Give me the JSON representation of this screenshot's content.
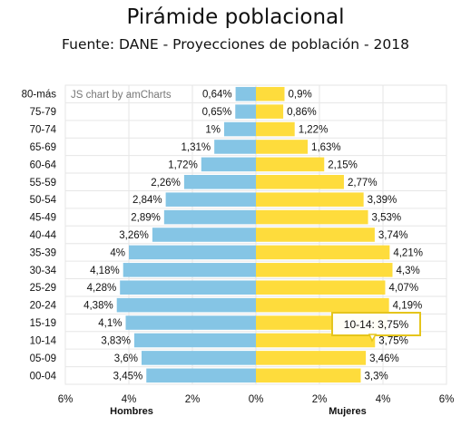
{
  "title": "Pirámide poblacional",
  "subtitle": "Fuente: DANE - Proyecciones de población - 2018",
  "credit": "JS chart by amCharts",
  "tooltip": "10-14: 3,75%",
  "chart_data": {
    "type": "bar",
    "orientation": "horizontal",
    "categories": [
      "80-más",
      "75-79",
      "70-74",
      "65-69",
      "60-64",
      "55-59",
      "50-54",
      "45-49",
      "40-44",
      "35-39",
      "30-34",
      "25-29",
      "20-24",
      "15-19",
      "10-14",
      "05-09",
      "00-04"
    ],
    "series": [
      {
        "name": "Hombres",
        "color": "#85c5e5",
        "side": "left",
        "values": [
          0.64,
          0.65,
          1,
          1.31,
          1.72,
          2.26,
          2.84,
          2.89,
          3.26,
          4,
          4.18,
          4.28,
          4.38,
          4.1,
          3.83,
          3.6,
          3.45
        ],
        "labels": [
          "0,64%",
          "0,65%",
          "1%",
          "1,31%",
          "1,72%",
          "2,26%",
          "2,84%",
          "2,89%",
          "3,26%",
          "4%",
          "4,18%",
          "4,28%",
          "4,38%",
          "4,1%",
          "3,83%",
          "3,6%",
          "3,45%"
        ]
      },
      {
        "name": "Mujeres",
        "color": "#fedc3c",
        "side": "right",
        "values": [
          0.9,
          0.86,
          1.22,
          1.63,
          2.15,
          2.77,
          3.39,
          3.53,
          3.74,
          4.21,
          4.3,
          4.07,
          4.19,
          4.15,
          3.75,
          3.46,
          3.3
        ],
        "labels": [
          "0,9%",
          "0,86%",
          "1,22%",
          "1,63%",
          "2,15%",
          "2,77%",
          "3,39%",
          "3,53%",
          "3,74%",
          "4,21%",
          "4,3%",
          "4,07%",
          "4,19%",
          "",
          "3,75%",
          "3,46%",
          "3,3%"
        ]
      }
    ],
    "x_ticks": [
      "6%",
      "4%",
      "2%",
      "0%",
      "2%",
      "4%",
      "6%"
    ],
    "xlim": [
      -6,
      6
    ],
    "grid": true
  }
}
